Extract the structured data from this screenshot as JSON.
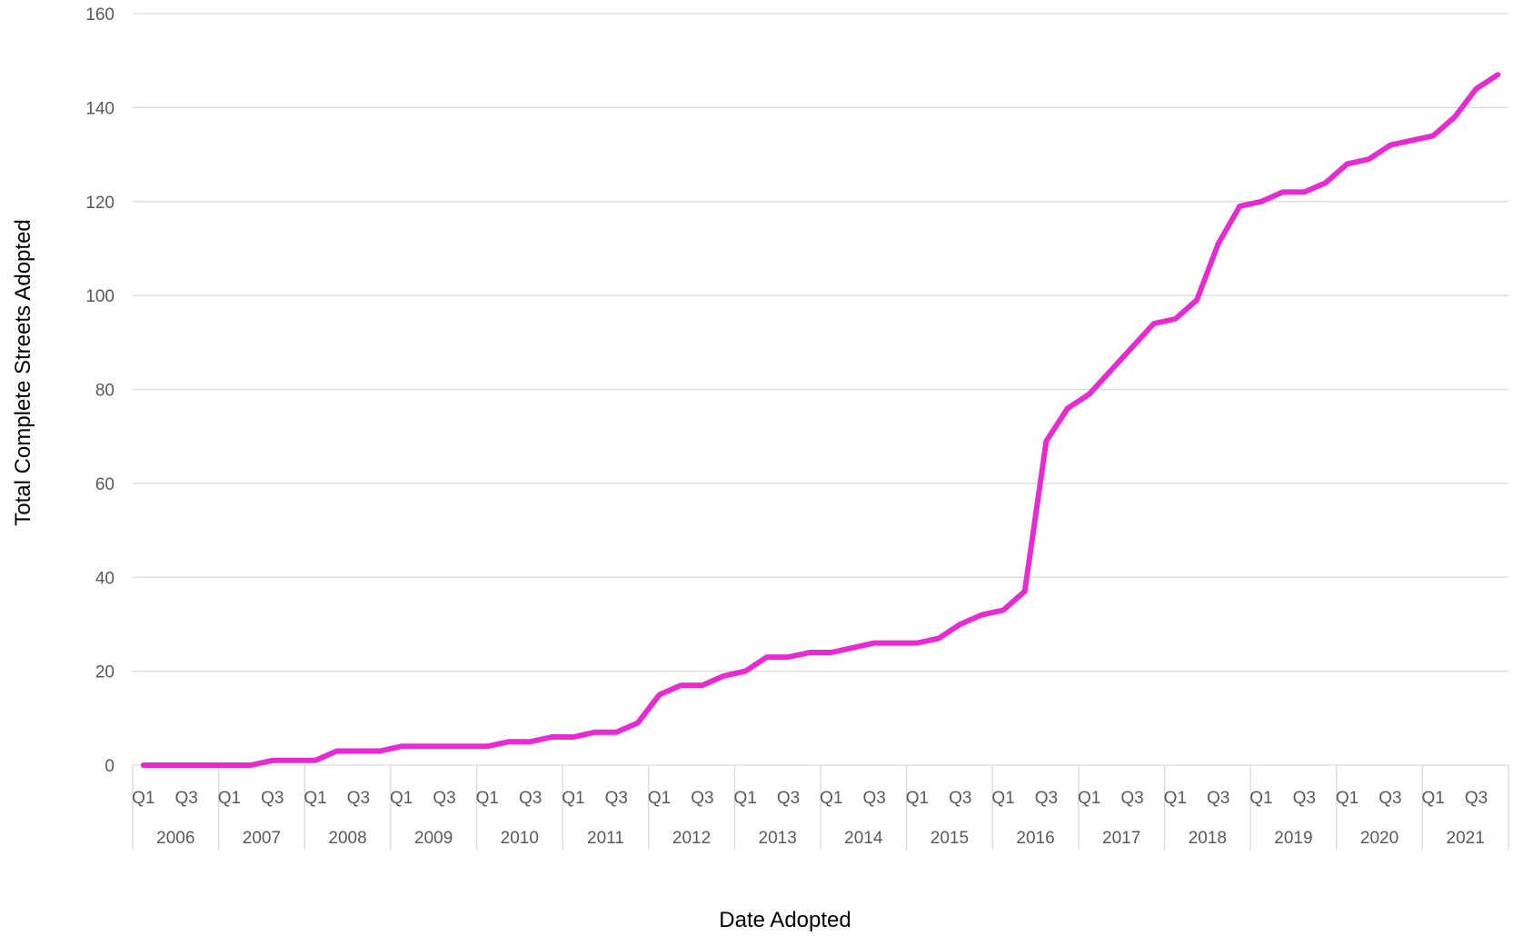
{
  "chart_data": {
    "type": "line",
    "title": "",
    "xlabel": "Date Adopted",
    "ylabel": "Total Complete Streets Adopted",
    "ylim": [
      0,
      160
    ],
    "y_ticks": [
      "0",
      "20",
      "40",
      "60",
      "80",
      "100",
      "120",
      "140",
      "160"
    ],
    "grid": "horizontal",
    "legend": "none",
    "line_color": "#E72AD2",
    "x_quarter_labels": [
      "Q1",
      "Q3"
    ],
    "years": [
      "2006",
      "2007",
      "2008",
      "2009",
      "2010",
      "2011",
      "2012",
      "2013",
      "2014",
      "2015",
      "2016",
      "2017",
      "2018",
      "2019",
      "2020",
      "2021"
    ],
    "series": [
      {
        "values": [
          0,
          0,
          0,
          0,
          0,
          0,
          1,
          1,
          1,
          3,
          3,
          3,
          4,
          4,
          4,
          4,
          4,
          5,
          5,
          6,
          6,
          7,
          7,
          9,
          15,
          17,
          17,
          19,
          20,
          23,
          23,
          24,
          24,
          25,
          26,
          26,
          26,
          27,
          30,
          32,
          33,
          37,
          69,
          76,
          79,
          84,
          89,
          94,
          95,
          99,
          111,
          119,
          120,
          122,
          122,
          124,
          128,
          129,
          132,
          133,
          134,
          138,
          144,
          147
        ]
      }
    ]
  }
}
